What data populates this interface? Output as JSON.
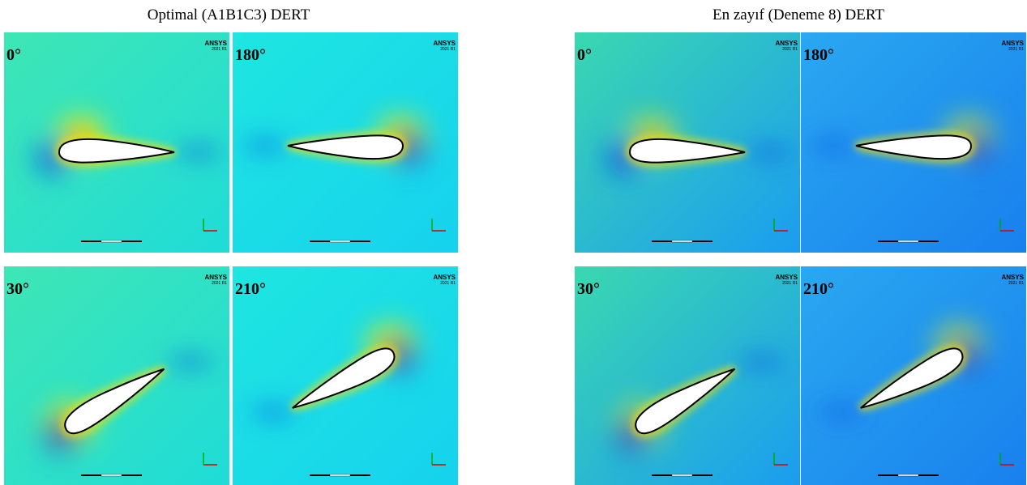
{
  "figures": [
    {
      "title": "Optimal (A1B1C3) DERT",
      "panels": [
        {
          "angle": "0°",
          "logo": "ANSYS",
          "version": "2021 R1"
        },
        {
          "angle": "180°",
          "logo": "ANSYS",
          "version": "2021 R1"
        },
        {
          "angle": "30°",
          "logo": "ANSYS",
          "version": "2021 R1"
        },
        {
          "angle": "210°",
          "logo": "ANSYS",
          "version": "2021 R1"
        }
      ]
    },
    {
      "title": "En zayıf (Deneme 8) DERT",
      "panels": [
        {
          "angle": "0°",
          "logo": "ANSYS",
          "version": "2021 R1"
        },
        {
          "angle": "180°",
          "logo": "ANSYS",
          "version": "2021 R1"
        },
        {
          "angle": "30°",
          "logo": "ANSYS",
          "version": "2021 R1"
        },
        {
          "angle": "210°",
          "logo": "ANSYS",
          "version": "2021 R1"
        }
      ]
    }
  ]
}
